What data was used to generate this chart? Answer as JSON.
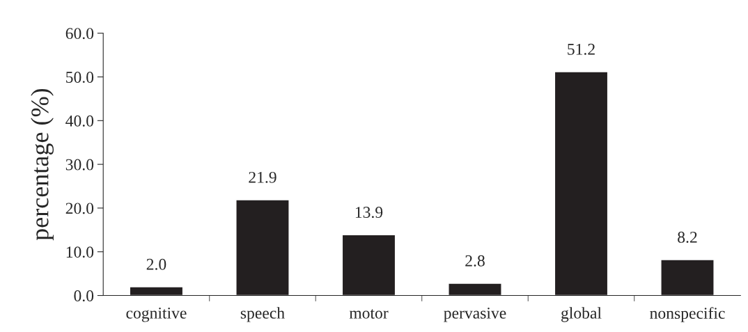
{
  "chart_data": {
    "type": "bar",
    "ylabel": "percentage (%)",
    "categories": [
      "cognitive",
      "speech",
      "motor",
      "pervasive",
      "global",
      "nonspecific"
    ],
    "values": [
      2.0,
      21.9,
      13.9,
      2.8,
      51.2,
      8.2
    ],
    "color": "#231f20",
    "ylim": [
      0,
      60
    ],
    "yticks": [
      {
        "value": 0,
        "label": "0.0"
      },
      {
        "value": 10,
        "label": "10.0"
      },
      {
        "value": 20,
        "label": "20.0"
      },
      {
        "value": 30,
        "label": "30.0"
      },
      {
        "value": 40,
        "label": "40.0"
      },
      {
        "value": 50,
        "label": "50.0"
      },
      {
        "value": 60,
        "label": "60.0"
      }
    ],
    "value_labels": [
      "2.0",
      "21.9",
      "13.9",
      "2.8",
      "51.2",
      "8.2"
    ],
    "grid": false,
    "legend": false
  }
}
